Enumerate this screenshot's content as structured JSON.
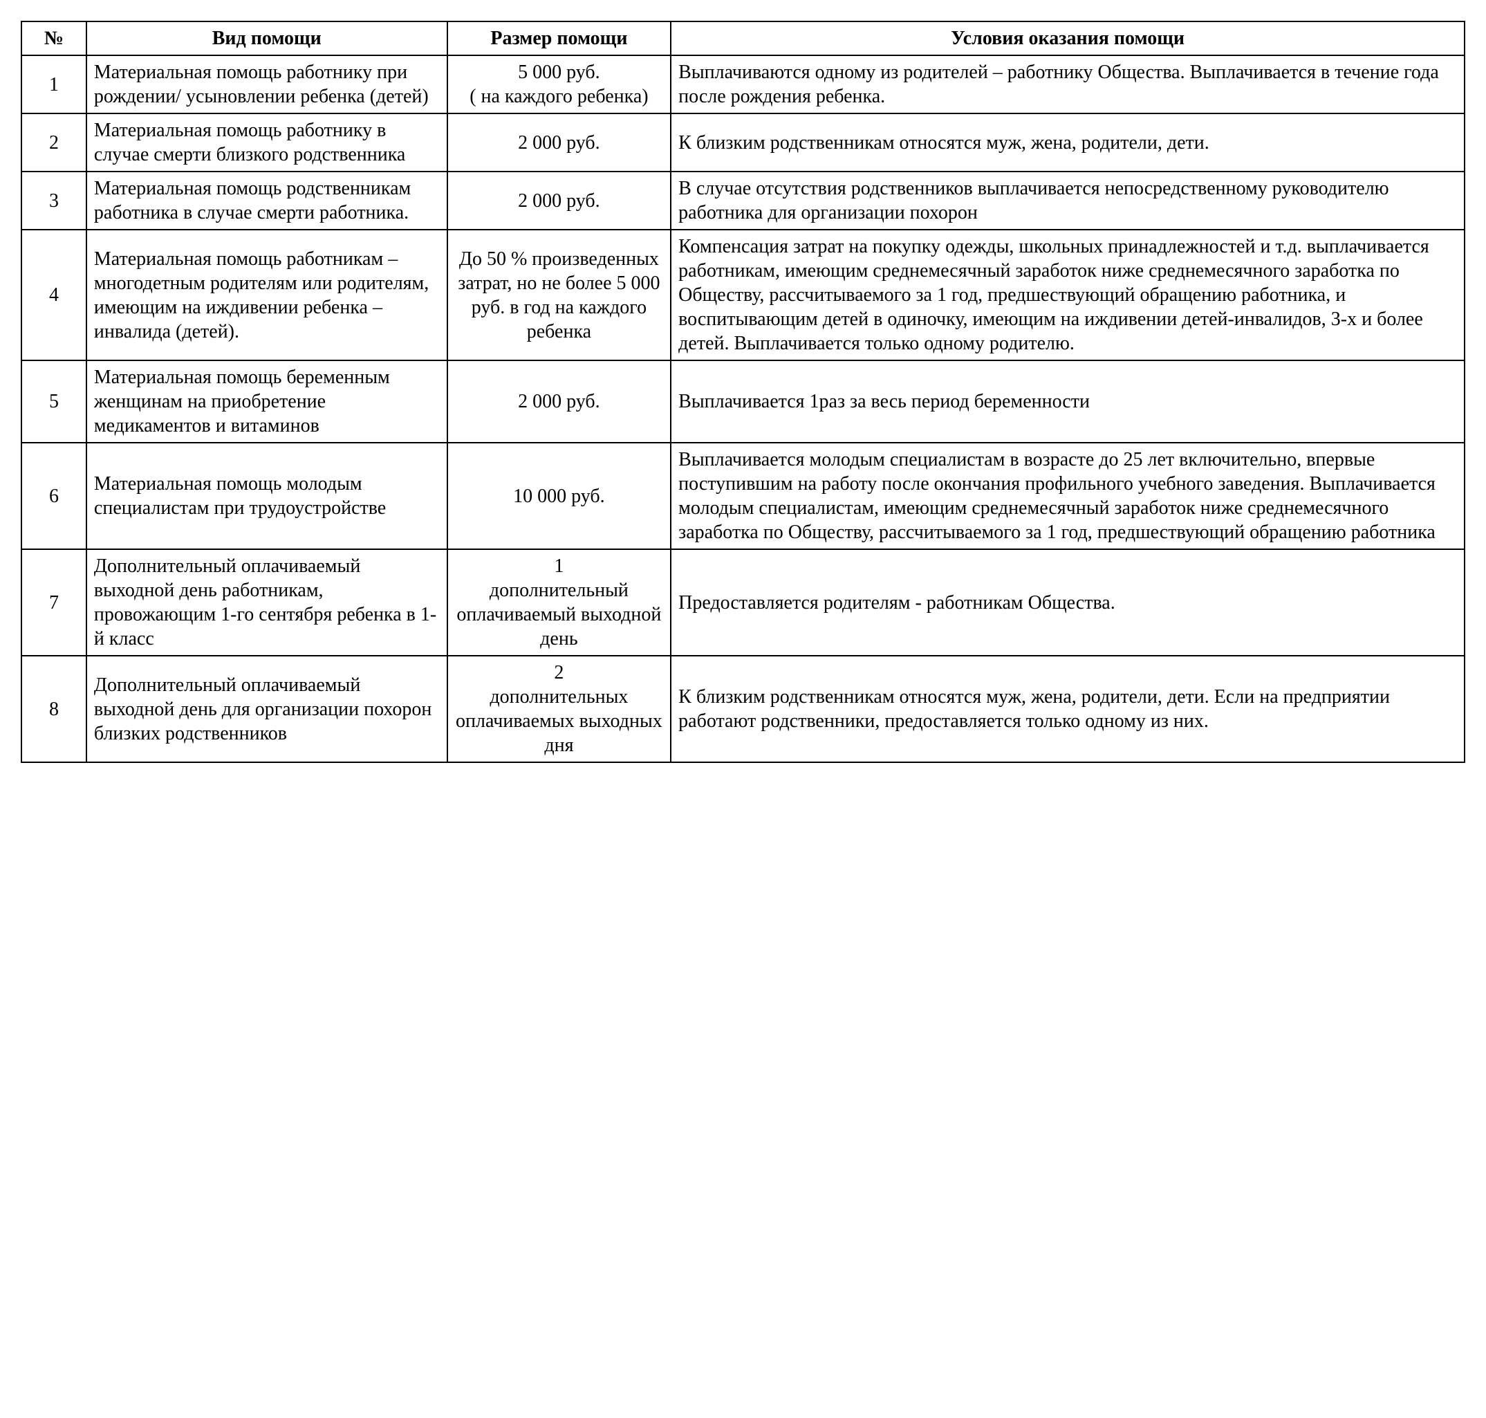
{
  "table": {
    "headers": {
      "num": "№",
      "type": "Вид помощи",
      "size": "Размер помощи",
      "cond": "Условия оказания помощи"
    },
    "rows": [
      {
        "num": "1",
        "type": " Материальная помощь работнику при рождении/ усыновлении ребенка (детей)",
        "size": "5 000 руб.\n( на каждого ребенка)",
        "cond": "Выплачиваются одному из родителей – работнику Общества. Выплачивается в течение года после рождения ребенка."
      },
      {
        "num": "2",
        "type": "Материальная помощь работнику в случае смерти близкого родственника",
        "size": "2 000 руб.",
        "cond": "К близким родственникам относятся муж, жена, родители, дети."
      },
      {
        "num": "3",
        "type": "Материальная помощь родственникам  работника в случае смерти работника.",
        "size": "2 000 руб.",
        "cond": "В случае отсутствия родственников выплачивается непосредственному руководителю работника для организации похорон"
      },
      {
        "num": "4",
        "type": "Материальная помощь работникам – многодетным родителям или родителям, имеющим на иждивении ребенка – инвалида (детей).",
        "size": "До 50 % произведенных затрат, но не более 5 000 руб. в год на каждого ребенка",
        "cond": "Компенсация затрат на покупку одежды, школьных принадлежностей и т.д. выплачивается работникам, имеющим  среднемесячный заработок ниже  среднемесячного  заработка по Обществу, рассчитываемого за 1 год, предшествующий обращению работника, и воспитывающим детей в одиночку, имеющим на иждивении детей-инвалидов, 3-х и более детей. Выплачивается только одному родителю."
      },
      {
        "num": "5",
        "type": " Материальная помощь беременным женщинам на приобретение медикаментов  и витаминов",
        "size": "2 000 руб.",
        "cond": "Выплачивается 1раз за весь период беременности"
      },
      {
        "num": "6",
        "type": "Материальная помощь молодым специалистам при трудоустройстве",
        "size": "10 000 руб.",
        "cond": "Выплачивается молодым специалистам в возрасте до 25 лет включительно, впервые поступившим на работу после окончания профильного учебного заведения. Выплачивается молодым специалистам,  имеющим среднемесячный заработок ниже  среднемесячного заработка по Обществу, рассчитываемого за 1 год, предшествующий обращению работника"
      },
      {
        "num": "7",
        "type": "Дополнительный оплачиваемый выходной день работникам, провожающим 1-го сентября ребенка в  1-й класс",
        "size": "1\nдополнительный оплачиваемый выходной день",
        "cond": "Предоставляется родителям -  работникам Общества."
      },
      {
        "num": "8",
        "type": "Дополнительный оплачиваемый выходной день для организации похорон  близких родственников",
        "size": "2\nдополнительных оплачиваемых выходных  дня",
        "cond": "К близким родственникам относятся муж, жена, родители, дети. Если на предприятии работают родственники, предоставляется только одному из них."
      }
    ]
  },
  "style": {
    "font_family": "Times New Roman",
    "header_fontsize_pt": 14,
    "cell_fontsize_pt": 14,
    "border_color": "#000000",
    "background_color": "#ffffff",
    "column_widths_pct": {
      "num": 4.5,
      "type": 25,
      "size": 15.5,
      "cond": 55
    },
    "align": {
      "num": "center",
      "type": "left",
      "size": "center",
      "cond": "left"
    }
  }
}
